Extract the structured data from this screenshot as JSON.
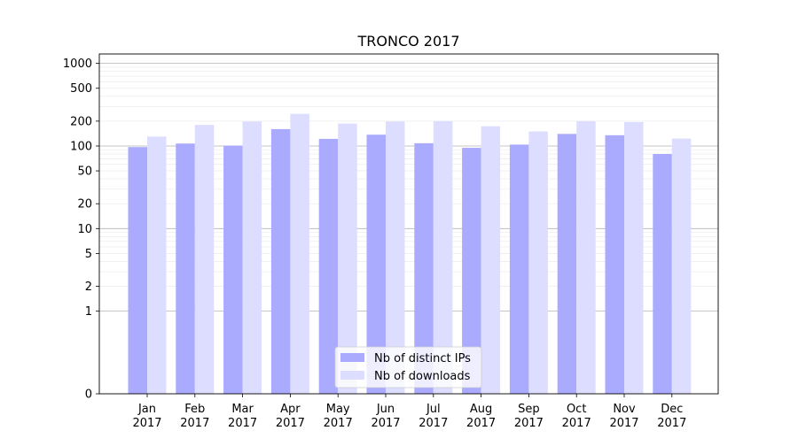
{
  "chart_data": {
    "type": "bar",
    "title": "TRONCO 2017",
    "xlabel": "",
    "ylabel": "",
    "y_scale": "symlog",
    "ylim": [
      0,
      1300
    ],
    "y_ticks": [
      0,
      1,
      2,
      5,
      10,
      20,
      50,
      100,
      200,
      500,
      1000
    ],
    "grid": true,
    "legend_position": "lower center",
    "categories": [
      "Jan\n2017",
      "Feb\n2017",
      "Mar\n2017",
      "Apr\n2017",
      "May\n2017",
      "Jun\n2017",
      "Jul\n2017",
      "Aug\n2017",
      "Sep\n2017",
      "Oct\n2017",
      "Nov\n2017",
      "Dec\n2017"
    ],
    "series": [
      {
        "name": "Nb of distinct IPs",
        "color": "#aaaaff",
        "values": [
          97,
          107,
          101,
          160,
          122,
          137,
          108,
          95,
          104,
          140,
          135,
          80
        ]
      },
      {
        "name": "Nb of downloads",
        "color": "#ddddff",
        "values": [
          130,
          180,
          198,
          245,
          187,
          198,
          200,
          173,
          150,
          200,
          195,
          123
        ]
      }
    ]
  }
}
